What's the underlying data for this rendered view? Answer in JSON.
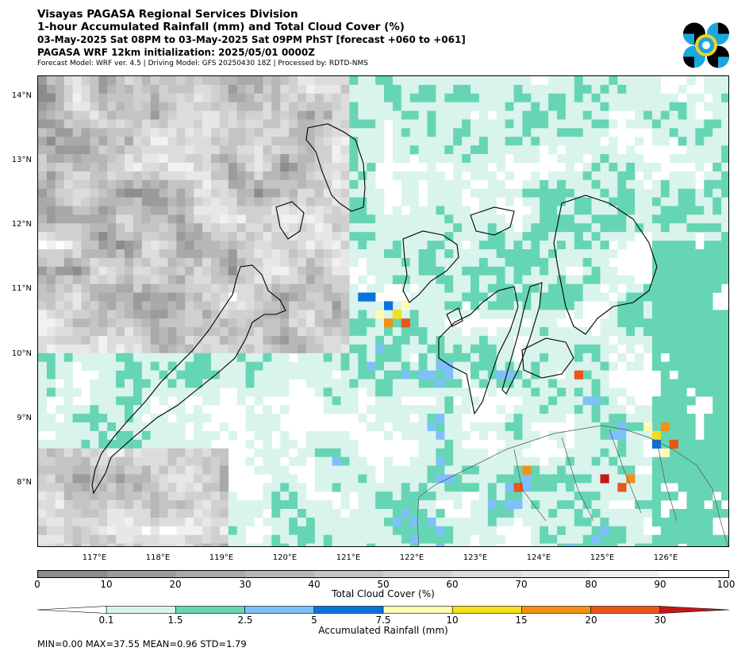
{
  "header": {
    "title_line1": "Visayas PAGASA Regional Services Division",
    "title_line2": "1-hour Accumulated Rainfall (mm) and Total Cloud Cover (%)",
    "title_line3": "03-May-2025 Sat 08PM to 03-May-2025 Sat 09PM PhST [forecast +060 to +061]",
    "title_line4": "PAGASA WRF 12km initialization: 2025/05/01 0000Z",
    "title_line5": "Forecast Model: WRF ver. 4.5 | Driving Model: GFS 20250430 18Z | Processed by: RDTD-NMS"
  },
  "map": {
    "lat_labels": [
      "14°N",
      "13°N",
      "12°N",
      "11°N",
      "10°N",
      "9°N",
      "8°N"
    ],
    "lon_labels": [
      "117°E",
      "118°E",
      "119°E",
      "120°E",
      "121°E",
      "122°E",
      "123°E",
      "124°E",
      "125°E",
      "126°E"
    ]
  },
  "cloud_colorbar": {
    "title": "Total Cloud Cover (%)",
    "ticks": [
      "0",
      "10",
      "20",
      "30",
      "40",
      "50",
      "60",
      "70",
      "80",
      "90",
      "100"
    ],
    "colors": [
      "#8c8c8c",
      "#9b9b9b",
      "#a9a9a9",
      "#b7b7b7",
      "#c4c4c4",
      "#d0d0d0",
      "#dcdcdc",
      "#e7e7e7",
      "#f1f1f1",
      "#ffffff"
    ]
  },
  "rain_colorbar": {
    "title": "Accumulated Rainfall (mm)",
    "ticks": [
      "0.1",
      "1.5",
      "2.5",
      "5",
      "7.5",
      "10",
      "15",
      "20",
      "30"
    ],
    "colors": [
      "#ffffff",
      "#d9f4ec",
      "#66d5b3",
      "#7dc0fb",
      "#0a72dc",
      "#fffbb4",
      "#f5de1c",
      "#f29215",
      "#e8561a",
      "#c41818"
    ]
  },
  "stats": "MIN=0.00   MAX=37.55   MEAN=0.96   STD=1.79"
}
